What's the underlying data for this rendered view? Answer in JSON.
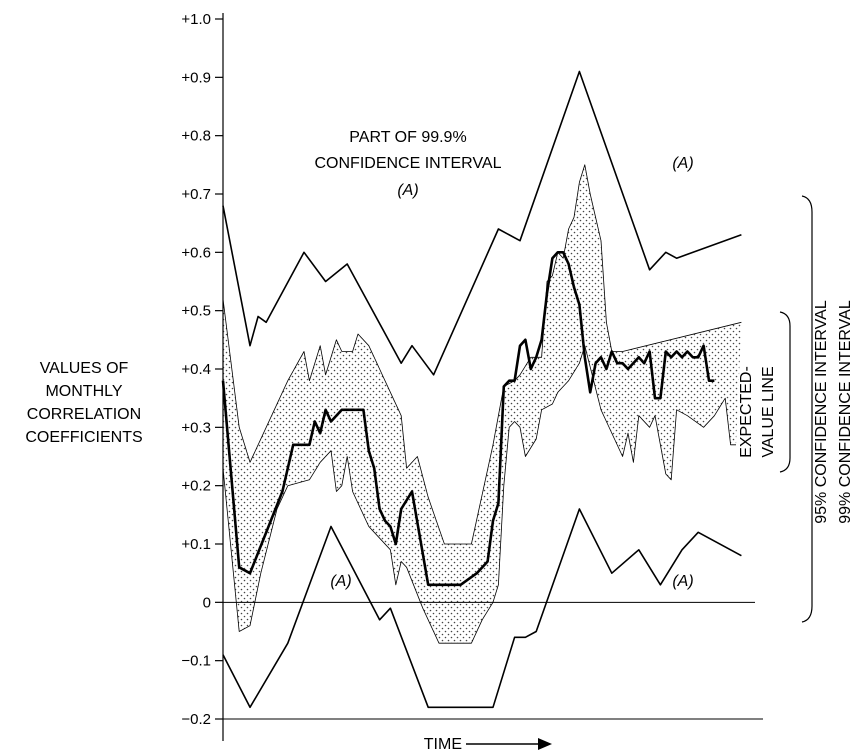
{
  "chart_data": {
    "type": "line",
    "title": "",
    "xlabel": "TIME",
    "ylabel": "VALUES OF MONTHLY CORRELATION COEFFICIENTS",
    "ylabel_lines": [
      "VALUES OF",
      "MONTHLY",
      "CORRELATION",
      "COEFFICIENTS"
    ],
    "ylim": [
      -0.2,
      1.0
    ],
    "xlim": [
      0,
      100
    ],
    "yticks": [
      {
        "value": 1.0,
        "label": "+1.0"
      },
      {
        "value": 0.9,
        "label": "+0.9"
      },
      {
        "value": 0.8,
        "label": "+0.8"
      },
      {
        "value": 0.7,
        "label": "+0.7"
      },
      {
        "value": 0.6,
        "label": "+0.6"
      },
      {
        "value": 0.5,
        "label": "+0.5"
      },
      {
        "value": 0.4,
        "label": "+0.4"
      },
      {
        "value": 0.3,
        "label": "+0.3"
      },
      {
        "value": 0.2,
        "label": "+0.2"
      },
      {
        "value": 0.1,
        "label": "+0.1"
      },
      {
        "value": 0.0,
        "label": "0"
      },
      {
        "value": -0.1,
        "label": "−0.1"
      },
      {
        "value": -0.2,
        "label": "−0.2"
      }
    ],
    "grid": false,
    "annotations": {
      "region_label": "(A)",
      "part_label_lines": [
        "PART OF 99.9%",
        "CONFIDENCE INTERVAL",
        "(A)"
      ],
      "expected_value_label_lines": [
        "EXPECTED-",
        "VALUE LINE"
      ],
      "ci95_label": "95% CONFIDENCE INTERVAL",
      "ci99_label": "99% CONFIDENCE INTERVAL"
    },
    "series": [
      {
        "role": "ci999-upper",
        "points": [
          [
            0,
            0.68
          ],
          [
            5,
            0.44
          ],
          [
            6.5,
            0.49
          ],
          [
            8,
            0.48
          ],
          [
            15,
            0.6
          ],
          [
            19,
            0.55
          ],
          [
            23,
            0.58
          ],
          [
            33,
            0.41
          ],
          [
            35,
            0.44
          ],
          [
            39,
            0.39
          ],
          [
            51,
            0.64
          ],
          [
            55,
            0.62
          ],
          [
            66,
            0.91
          ],
          [
            79,
            0.57
          ],
          [
            82,
            0.6
          ],
          [
            84,
            0.59
          ],
          [
            96,
            0.63
          ]
        ]
      },
      {
        "role": "ci999-lower",
        "points": [
          [
            0,
            -0.09
          ],
          [
            5,
            -0.18
          ],
          [
            12,
            -0.07
          ],
          [
            20,
            0.13
          ],
          [
            29,
            -0.03
          ],
          [
            31,
            -0.01
          ],
          [
            38,
            -0.18
          ],
          [
            50,
            -0.18
          ],
          [
            54,
            -0.06
          ],
          [
            56,
            -0.06
          ],
          [
            58,
            -0.05
          ],
          [
            66,
            0.16
          ],
          [
            72,
            0.05
          ],
          [
            77,
            0.09
          ],
          [
            81,
            0.03
          ],
          [
            85,
            0.09
          ],
          [
            88,
            0.12
          ],
          [
            96,
            0.08
          ]
        ]
      },
      {
        "role": "ci-upper",
        "points": [
          [
            0,
            0.52
          ],
          [
            3,
            0.3
          ],
          [
            5,
            0.24
          ],
          [
            8,
            0.3
          ],
          [
            12,
            0.38
          ],
          [
            15,
            0.43
          ],
          [
            16,
            0.38
          ],
          [
            18,
            0.44
          ],
          [
            19,
            0.39
          ],
          [
            21,
            0.45
          ],
          [
            22,
            0.43
          ],
          [
            24,
            0.43
          ],
          [
            25,
            0.46
          ],
          [
            27,
            0.44
          ],
          [
            33,
            0.32
          ],
          [
            34,
            0.23
          ],
          [
            36,
            0.25
          ],
          [
            38,
            0.18
          ],
          [
            41,
            0.1
          ],
          [
            46,
            0.1
          ],
          [
            50,
            0.27
          ],
          [
            52,
            0.37
          ],
          [
            54,
            0.38
          ],
          [
            55,
            0.39
          ],
          [
            57,
            0.42
          ],
          [
            59,
            0.42
          ],
          [
            60,
            0.55
          ],
          [
            61,
            0.56
          ],
          [
            62,
            0.6
          ],
          [
            63,
            0.59
          ],
          [
            64,
            0.64
          ],
          [
            65,
            0.66
          ],
          [
            66,
            0.72
          ],
          [
            67,
            0.75
          ],
          [
            68,
            0.7
          ],
          [
            70,
            0.62
          ],
          [
            71,
            0.48
          ],
          [
            72,
            0.43
          ],
          [
            74,
            0.43
          ],
          [
            96,
            0.48
          ]
        ]
      },
      {
        "role": "ci-lower",
        "points": [
          [
            0,
            0.23
          ],
          [
            3,
            -0.05
          ],
          [
            5,
            -0.04
          ],
          [
            7,
            0.05
          ],
          [
            10,
            0.16
          ],
          [
            12,
            0.2
          ],
          [
            16,
            0.21
          ],
          [
            18,
            0.24
          ],
          [
            20,
            0.26
          ],
          [
            21,
            0.19
          ],
          [
            22,
            0.2
          ],
          [
            23,
            0.25
          ],
          [
            24,
            0.19
          ],
          [
            27,
            0.13
          ],
          [
            28,
            0.12
          ],
          [
            31,
            0.09
          ],
          [
            32,
            0.03
          ],
          [
            33,
            0.07
          ],
          [
            34,
            0.06
          ],
          [
            37,
            -0.01
          ],
          [
            40,
            -0.07
          ],
          [
            46,
            -0.07
          ],
          [
            48,
            -0.03
          ],
          [
            50,
            0.0
          ],
          [
            51,
            0.03
          ],
          [
            52,
            0.2
          ],
          [
            53,
            0.3
          ],
          [
            54,
            0.31
          ],
          [
            55,
            0.3
          ],
          [
            56,
            0.25
          ],
          [
            58,
            0.28
          ],
          [
            59,
            0.33
          ],
          [
            61,
            0.34
          ],
          [
            62,
            0.36
          ],
          [
            63,
            0.37
          ],
          [
            64,
            0.38
          ],
          [
            66,
            0.41
          ],
          [
            67,
            0.44
          ],
          [
            70,
            0.33
          ],
          [
            71,
            0.31
          ],
          [
            74,
            0.25
          ],
          [
            75,
            0.29
          ],
          [
            76,
            0.24
          ],
          [
            77,
            0.32
          ],
          [
            79,
            0.3
          ],
          [
            80,
            0.32
          ],
          [
            82,
            0.22
          ],
          [
            83,
            0.21
          ],
          [
            84,
            0.33
          ],
          [
            86,
            0.32
          ],
          [
            89,
            0.3
          ],
          [
            91,
            0.32
          ],
          [
            93,
            0.35
          ],
          [
            94,
            0.27
          ],
          [
            95,
            0.27
          ]
        ]
      },
      {
        "role": "expected-value",
        "points": [
          [
            0,
            0.38
          ],
          [
            3,
            0.06
          ],
          [
            5,
            0.05
          ],
          [
            11,
            0.19
          ],
          [
            13,
            0.27
          ],
          [
            14,
            0.27
          ],
          [
            16,
            0.27
          ],
          [
            17,
            0.31
          ],
          [
            18,
            0.29
          ],
          [
            19,
            0.33
          ],
          [
            20,
            0.31
          ],
          [
            22,
            0.33
          ],
          [
            26,
            0.33
          ],
          [
            27,
            0.26
          ],
          [
            28,
            0.23
          ],
          [
            29,
            0.16
          ],
          [
            30,
            0.14
          ],
          [
            31,
            0.13
          ],
          [
            32,
            0.1
          ],
          [
            33,
            0.16
          ],
          [
            35,
            0.19
          ],
          [
            38,
            0.03
          ],
          [
            44,
            0.03
          ],
          [
            47,
            0.05
          ],
          [
            49,
            0.07
          ],
          [
            50,
            0.14
          ],
          [
            51,
            0.17
          ],
          [
            52,
            0.37
          ],
          [
            53,
            0.38
          ],
          [
            54,
            0.38
          ],
          [
            55,
            0.44
          ],
          [
            56,
            0.45
          ],
          [
            57,
            0.4
          ],
          [
            58,
            0.42
          ],
          [
            59,
            0.45
          ],
          [
            60,
            0.53
          ],
          [
            61,
            0.59
          ],
          [
            62,
            0.6
          ],
          [
            63,
            0.6
          ],
          [
            64,
            0.58
          ],
          [
            65,
            0.54
          ],
          [
            66,
            0.51
          ],
          [
            67,
            0.42
          ],
          [
            68,
            0.36
          ],
          [
            69,
            0.41
          ],
          [
            70,
            0.42
          ],
          [
            71,
            0.4
          ],
          [
            72,
            0.43
          ],
          [
            73,
            0.41
          ],
          [
            74,
            0.41
          ],
          [
            75,
            0.4
          ],
          [
            77,
            0.42
          ],
          [
            78,
            0.41
          ],
          [
            79,
            0.43
          ],
          [
            80,
            0.35
          ],
          [
            81,
            0.35
          ],
          [
            82,
            0.43
          ],
          [
            83,
            0.42
          ],
          [
            84,
            0.43
          ],
          [
            85,
            0.42
          ],
          [
            86,
            0.43
          ],
          [
            87,
            0.42
          ],
          [
            88,
            0.42
          ],
          [
            89,
            0.44
          ],
          [
            90,
            0.38
          ],
          [
            91,
            0.38
          ]
        ]
      }
    ]
  }
}
